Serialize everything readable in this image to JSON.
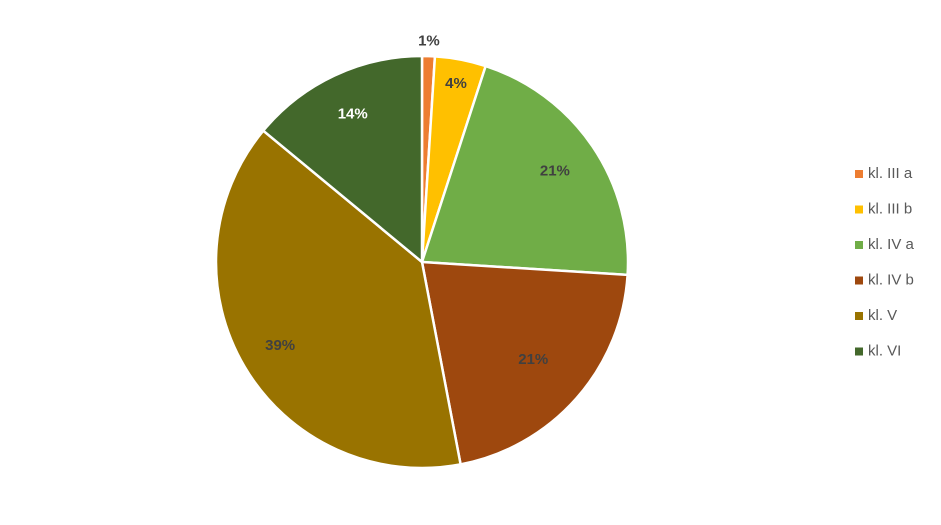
{
  "chart_data": {
    "type": "pie",
    "categories": [
      "kl. III a",
      "kl. III b",
      "kl. IV a",
      "kl. IV b",
      "kl. V",
      "kl. VI"
    ],
    "values": [
      1,
      4,
      21,
      21,
      39,
      14
    ],
    "value_labels": [
      "1%",
      "4%",
      "21%",
      "21%",
      "39%",
      "14%"
    ],
    "colors": [
      "#ED7D31",
      "#FFC000",
      "#70AD47",
      "#9E480E",
      "#997300",
      "#43682B"
    ],
    "legend": "right"
  }
}
